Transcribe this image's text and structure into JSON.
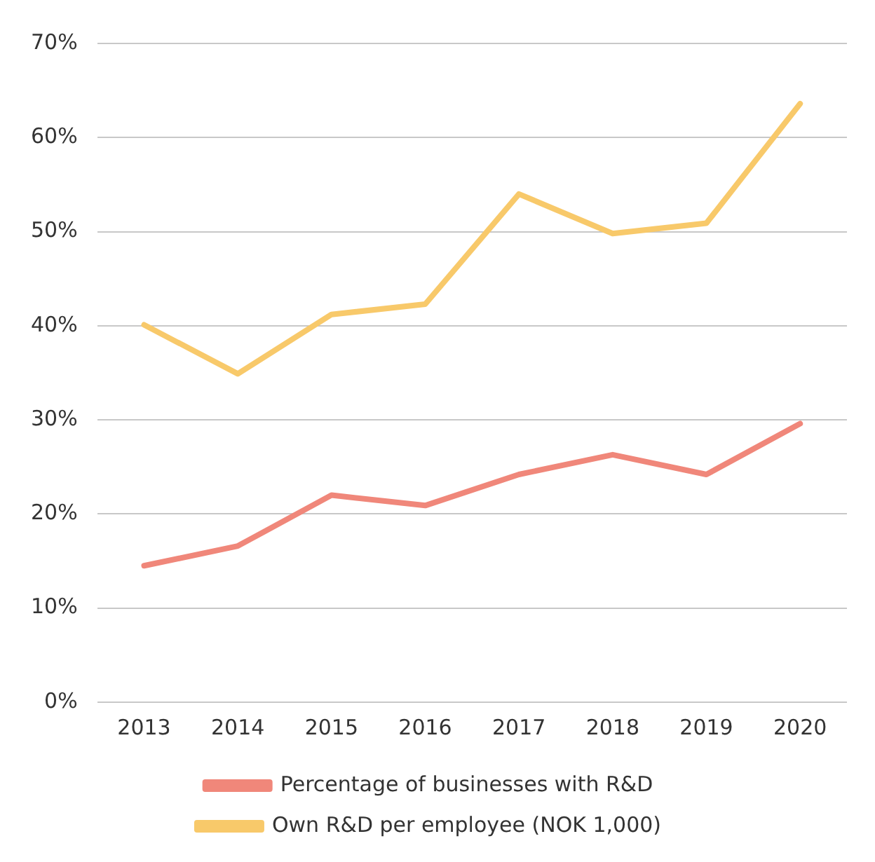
{
  "chart_data": {
    "type": "line",
    "categories": [
      "2013",
      "2014",
      "2015",
      "2016",
      "2017",
      "2018",
      "2019",
      "2020"
    ],
    "series": [
      {
        "name": "Percentage of businesses with R&D",
        "color": "#f0877a",
        "values": [
          14.5,
          16.6,
          22.0,
          20.9,
          24.2,
          26.3,
          24.2,
          29.6
        ]
      },
      {
        "name": "Own R&D per employee (NOK 1,000)",
        "color": "#f8c96a",
        "values": [
          40.1,
          34.9,
          41.2,
          42.3,
          54.0,
          49.8,
          50.9,
          63.6
        ]
      }
    ],
    "ylim": [
      0,
      70
    ],
    "yticks": [
      {
        "value": 0,
        "label": "0%"
      },
      {
        "value": 10,
        "label": "10%"
      },
      {
        "value": 20,
        "label": "20%"
      },
      {
        "value": 30,
        "label": "30%"
      },
      {
        "value": 40,
        "label": "40%"
      },
      {
        "value": 50,
        "label": "50%"
      },
      {
        "value": 60,
        "label": "60%"
      },
      {
        "value": 70,
        "label": "70%"
      }
    ],
    "grid": "y",
    "legend": "bottom",
    "marker": "none",
    "line_style": "solid"
  }
}
